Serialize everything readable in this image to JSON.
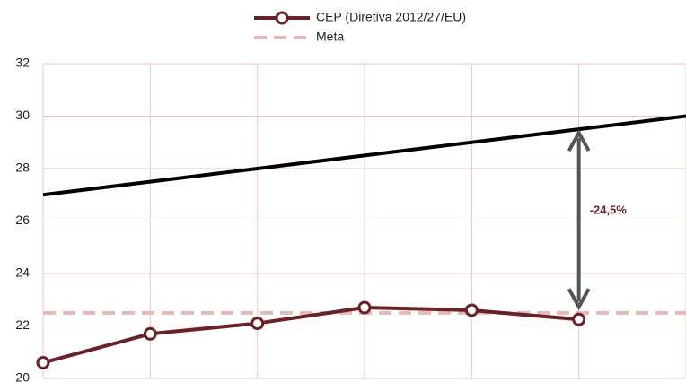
{
  "chart_data": {
    "type": "line",
    "categories": [
      null,
      null,
      null,
      null,
      null,
      null,
      null
    ],
    "series": [
      {
        "name": "CEP (Diretiva 2012/27/EU)",
        "color": "#6b2226",
        "style": "solid-markers",
        "values": [
          20.6,
          21.7,
          22.1,
          22.7,
          22.6,
          22.25,
          null
        ]
      },
      {
        "name": "Meta",
        "color": "#e6b8b7",
        "style": "dashed",
        "values": [
          22.5,
          22.5,
          22.5,
          22.5,
          22.5,
          22.5,
          22.5
        ]
      },
      {
        "color": "#000000",
        "style": "solid",
        "values": [
          27,
          27.5,
          28,
          28.5,
          29,
          29.5,
          30
        ]
      }
    ],
    "annotation": "-24,5%",
    "ylim": [
      20,
      32
    ],
    "yticks": [
      20,
      22,
      24,
      26,
      28,
      30,
      32
    ],
    "grid": true
  }
}
